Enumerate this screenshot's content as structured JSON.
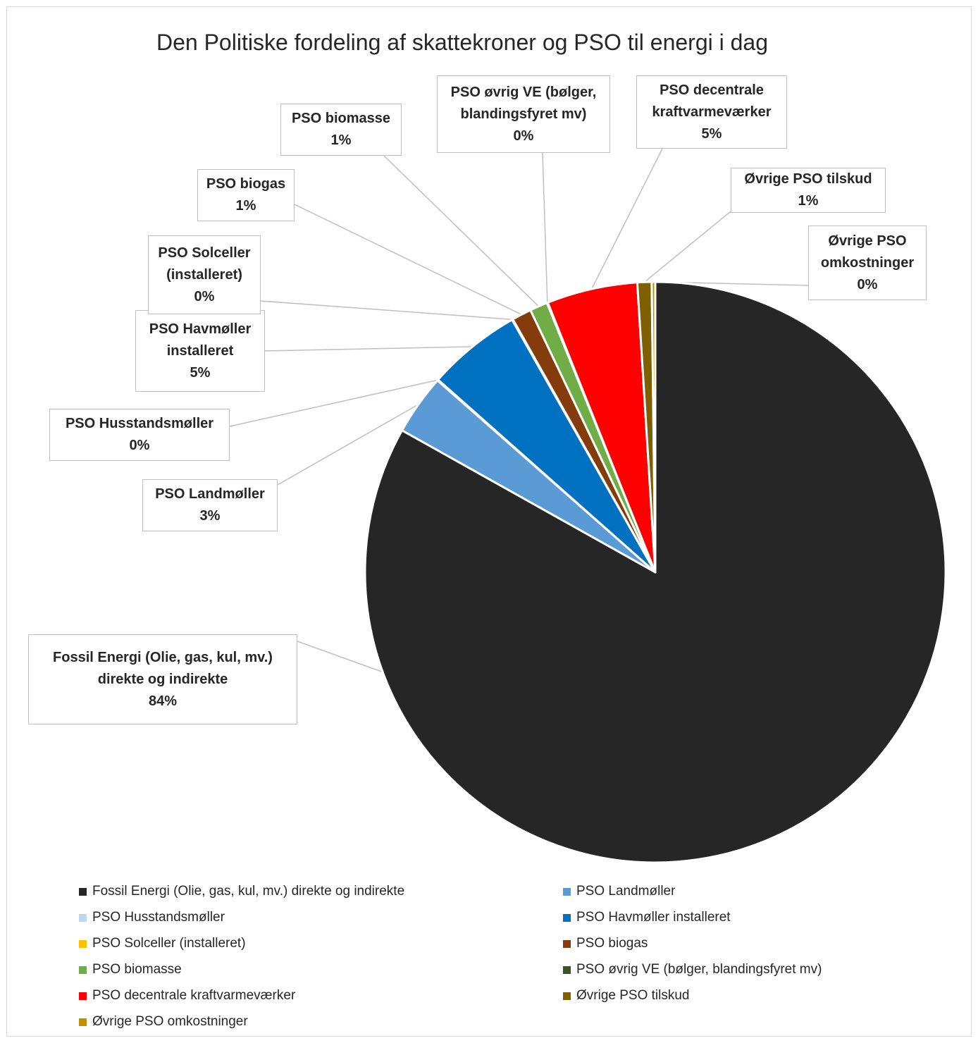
{
  "chart_data": {
    "type": "pie",
    "title": "Den Politiske fordeling af skattekroner og PSO til energi i dag",
    "legend_position": "bottom",
    "slices": [
      {
        "name": "Fossil Energi (Olie, gas, kul, mv.) direkte og indirekte",
        "label_lines": [
          "Fossil Energi (Olie, gas, kul, mv.)",
          "direkte og indirekte"
        ],
        "value": 84,
        "pct_label": "84%",
        "color": "#262626"
      },
      {
        "name": "PSO Landmøller",
        "label_lines": [
          "PSO Landmøller"
        ],
        "value": 3.4,
        "pct_label": "3%",
        "color": "#5b9bd5"
      },
      {
        "name": "PSO Husstandsmøller",
        "label_lines": [
          "PSO Husstandsmøller"
        ],
        "value": 0.05,
        "pct_label": "0%",
        "color": "#bdd7ee"
      },
      {
        "name": "PSO Havmøller installeret",
        "label_lines": [
          "PSO Havmøller",
          "installeret"
        ],
        "value": 5.3,
        "pct_label": "5%",
        "color": "#0070c0"
      },
      {
        "name": "PSO Solceller (installeret)",
        "label_lines": [
          "PSO Solceller",
          "(installeret)"
        ],
        "value": 0.05,
        "pct_label": "0%",
        "color": "#ffc000"
      },
      {
        "name": "PSO biogas",
        "label_lines": [
          "PSO biogas"
        ],
        "value": 1.1,
        "pct_label": "1%",
        "color": "#843c0c"
      },
      {
        "name": "PSO biomasse",
        "label_lines": [
          "PSO biomasse"
        ],
        "value": 1.0,
        "pct_label": "1%",
        "color": "#70ad47"
      },
      {
        "name": "PSO øvrig VE (bølger, blandingsfyret mv)",
        "label_lines": [
          "PSO øvrig VE (bølger,",
          "blandingsfyret mv)"
        ],
        "value": 0.05,
        "pct_label": "0%",
        "color": "#375623"
      },
      {
        "name": "PSO decentrale kraftvarmeværker",
        "label_lines": [
          "PSO decentrale",
          "kraftvarmeværker"
        ],
        "value": 5.1,
        "pct_label": "5%",
        "color": "#ff0000"
      },
      {
        "name": "Øvrige PSO tilskud",
        "label_lines": [
          "Øvrige PSO tilskud"
        ],
        "value": 0.8,
        "pct_label": "1%",
        "color": "#7f6000"
      },
      {
        "name": "Øvrige PSO omkostninger",
        "label_lines": [
          "Øvrige PSO",
          "omkostninger"
        ],
        "value": 0.2,
        "pct_label": "0%",
        "color": "#bf9000"
      }
    ]
  }
}
